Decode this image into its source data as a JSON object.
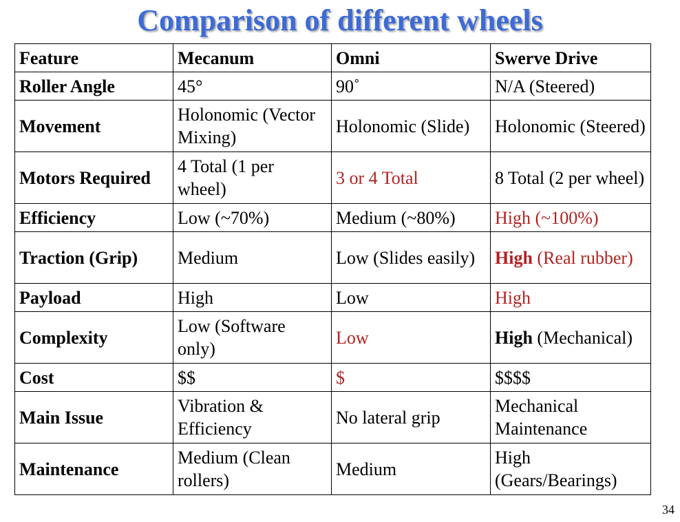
{
  "title": "Comparison of different wheels",
  "page_number": "34",
  "colors": {
    "title": "#3d6bd6",
    "highlight": "#b22222"
  },
  "table": {
    "headers": [
      "Feature",
      "Mecanum",
      "Omni",
      "Swerve Drive"
    ],
    "rows": [
      {
        "feature": "Roller Angle",
        "mecanum": "45°",
        "omni": "90˚",
        "swerve": "N/A (Steered)"
      },
      {
        "feature": "Movement",
        "mecanum": "Holonomic (Vector Mixing)",
        "omni": "Holonomic (Slide)",
        "swerve": "Holonomic (Steered)"
      },
      {
        "feature": "Motors Required",
        "mecanum": "4 Total (1 per wheel)",
        "omni": "3 or 4 Total",
        "swerve": "8 Total (2 per wheel)"
      },
      {
        "feature": "Efficiency",
        "mecanum": "Low (~70%)",
        "omni": "Medium (~80%)",
        "swerve": "High (~100%)"
      },
      {
        "feature": "Traction (Grip)",
        "mecanum": "Medium",
        "omni": "Low (Slides easily)",
        "swerve_bold": "High",
        "swerve_rest": " (Real rubber)"
      },
      {
        "feature": "Payload",
        "mecanum": "High",
        "omni": "Low",
        "swerve": "High"
      },
      {
        "feature": "Complexity",
        "mecanum": "Low (Software only)",
        "omni": "Low",
        "swerve_bold": "High",
        "swerve_rest": " (Mechanical)"
      },
      {
        "feature": "Cost",
        "mecanum": "$$",
        "omni": "$",
        "swerve": "$$$$"
      },
      {
        "feature": "Main Issue",
        "mecanum": "Vibration & Efficiency",
        "omni": "No lateral grip",
        "swerve": "Mechanical Maintenance"
      },
      {
        "feature": "Maintenance",
        "mecanum": "Medium (Clean rollers)",
        "omni": "Medium",
        "swerve": "High (Gears/Bearings)"
      }
    ]
  }
}
